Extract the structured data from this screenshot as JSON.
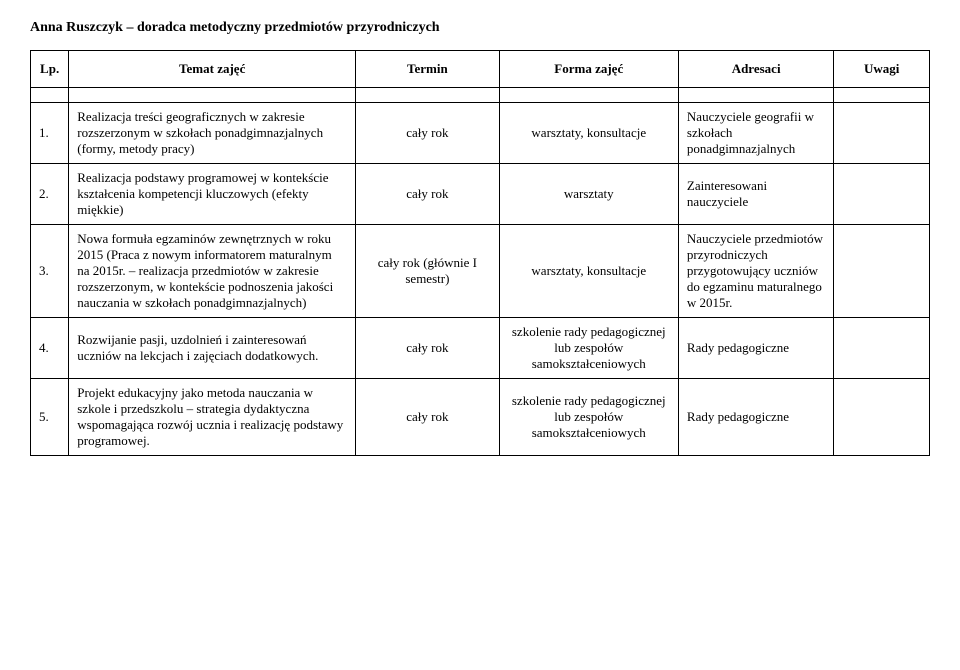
{
  "doc_title": "Anna Ruszczyk – doradca metodyczny przedmiotów przyrodniczych",
  "columns": {
    "lp": "Lp.",
    "temat": "Temat zajęć",
    "termin": "Termin",
    "forma": "Forma zajęć",
    "adresaci": "Adresaci",
    "uwagi": "Uwagi"
  },
  "rows": [
    {
      "lp": "1.",
      "temat": "Realizacja treści geograficznych w zakresie rozszerzonym w szkołach ponadgimnazjalnych (formy, metody pracy)",
      "termin": "cały rok",
      "forma": "warsztaty, konsultacje",
      "adresaci": "Nauczyciele geografii w szkołach ponadgimnazjalnych",
      "uwagi": ""
    },
    {
      "lp": "2.",
      "temat": "Realizacja podstawy programowej w kontekście kształcenia kompetencji kluczowych (efekty miękkie)",
      "termin": "cały rok",
      "forma": "warsztaty",
      "adresaci": "Zainteresowani nauczyciele",
      "uwagi": ""
    },
    {
      "lp": "3.",
      "temat": "Nowa formuła egzaminów zewnętrznych w roku 2015 (Praca z nowym informatorem maturalnym na 2015r. – realizacja przedmiotów w zakresie rozszerzonym, w kontekście podnoszenia jakości nauczania w szkołach ponadgimnazjalnych)",
      "termin": "cały rok (głównie I semestr)",
      "forma": "warsztaty, konsultacje",
      "adresaci": "Nauczyciele przedmiotów przyrodniczych przygotowujący uczniów do egzaminu maturalnego w 2015r.",
      "uwagi": ""
    },
    {
      "lp": "4.",
      "temat": "Rozwijanie pasji, uzdolnień i zainteresowań uczniów na lekcjach i zajęciach dodatkowych.",
      "termin": "cały rok",
      "forma": "szkolenie rady pedagogicznej lub zespołów samokształceniowych",
      "adresaci": "Rady pedagogiczne",
      "uwagi": ""
    },
    {
      "lp": "5.",
      "temat": "Projekt edukacyjny jako metoda nauczania w szkole i przedszkolu – strategia dydaktyczna wspomagająca rozwój ucznia i realizację podstawy programowej.",
      "termin": "cały rok",
      "forma": "szkolenie rady pedagogicznej lub zespołów samokształceniowych",
      "adresaci": "Rady pedagogiczne",
      "uwagi": ""
    }
  ]
}
